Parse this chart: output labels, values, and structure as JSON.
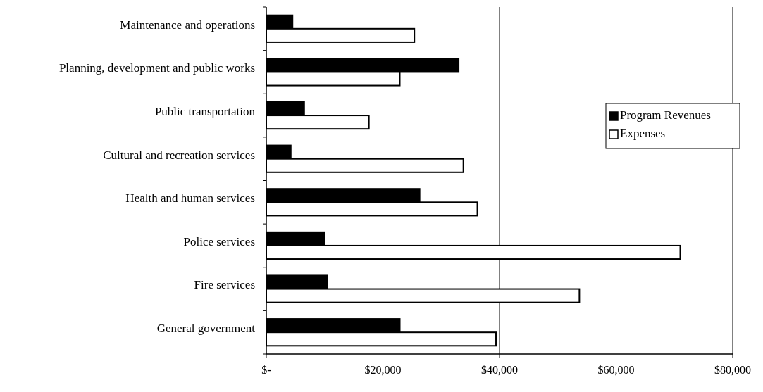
{
  "chart_data": {
    "type": "bar",
    "orientation": "horizontal",
    "categories": [
      "Maintenance and operations",
      "Planning, development and public works",
      "Public transportation",
      "Cultural and recreation services",
      "Health and human services",
      "Police services",
      "Fire services",
      "General government"
    ],
    "series": [
      {
        "name": "Program Revenues",
        "color": "#000000",
        "values": [
          4500,
          33000,
          6500,
          4200,
          26300,
          10000,
          10400,
          22900
        ]
      },
      {
        "name": "Expenses",
        "color": "#ffffff",
        "values": [
          25400,
          22900,
          17600,
          33800,
          36200,
          71000,
          53700,
          39400
        ]
      }
    ],
    "xlim": [
      0,
      80000
    ],
    "xticks": [
      {
        "value": 0,
        "label": "$-"
      },
      {
        "value": 20000,
        "label": "$20,000"
      },
      {
        "value": 40000,
        "label": "$40,000"
      },
      {
        "value": 60000,
        "label": "$60,000"
      },
      {
        "value": 80000,
        "label": "$80,000"
      }
    ],
    "grid": "x",
    "legend": "right"
  }
}
